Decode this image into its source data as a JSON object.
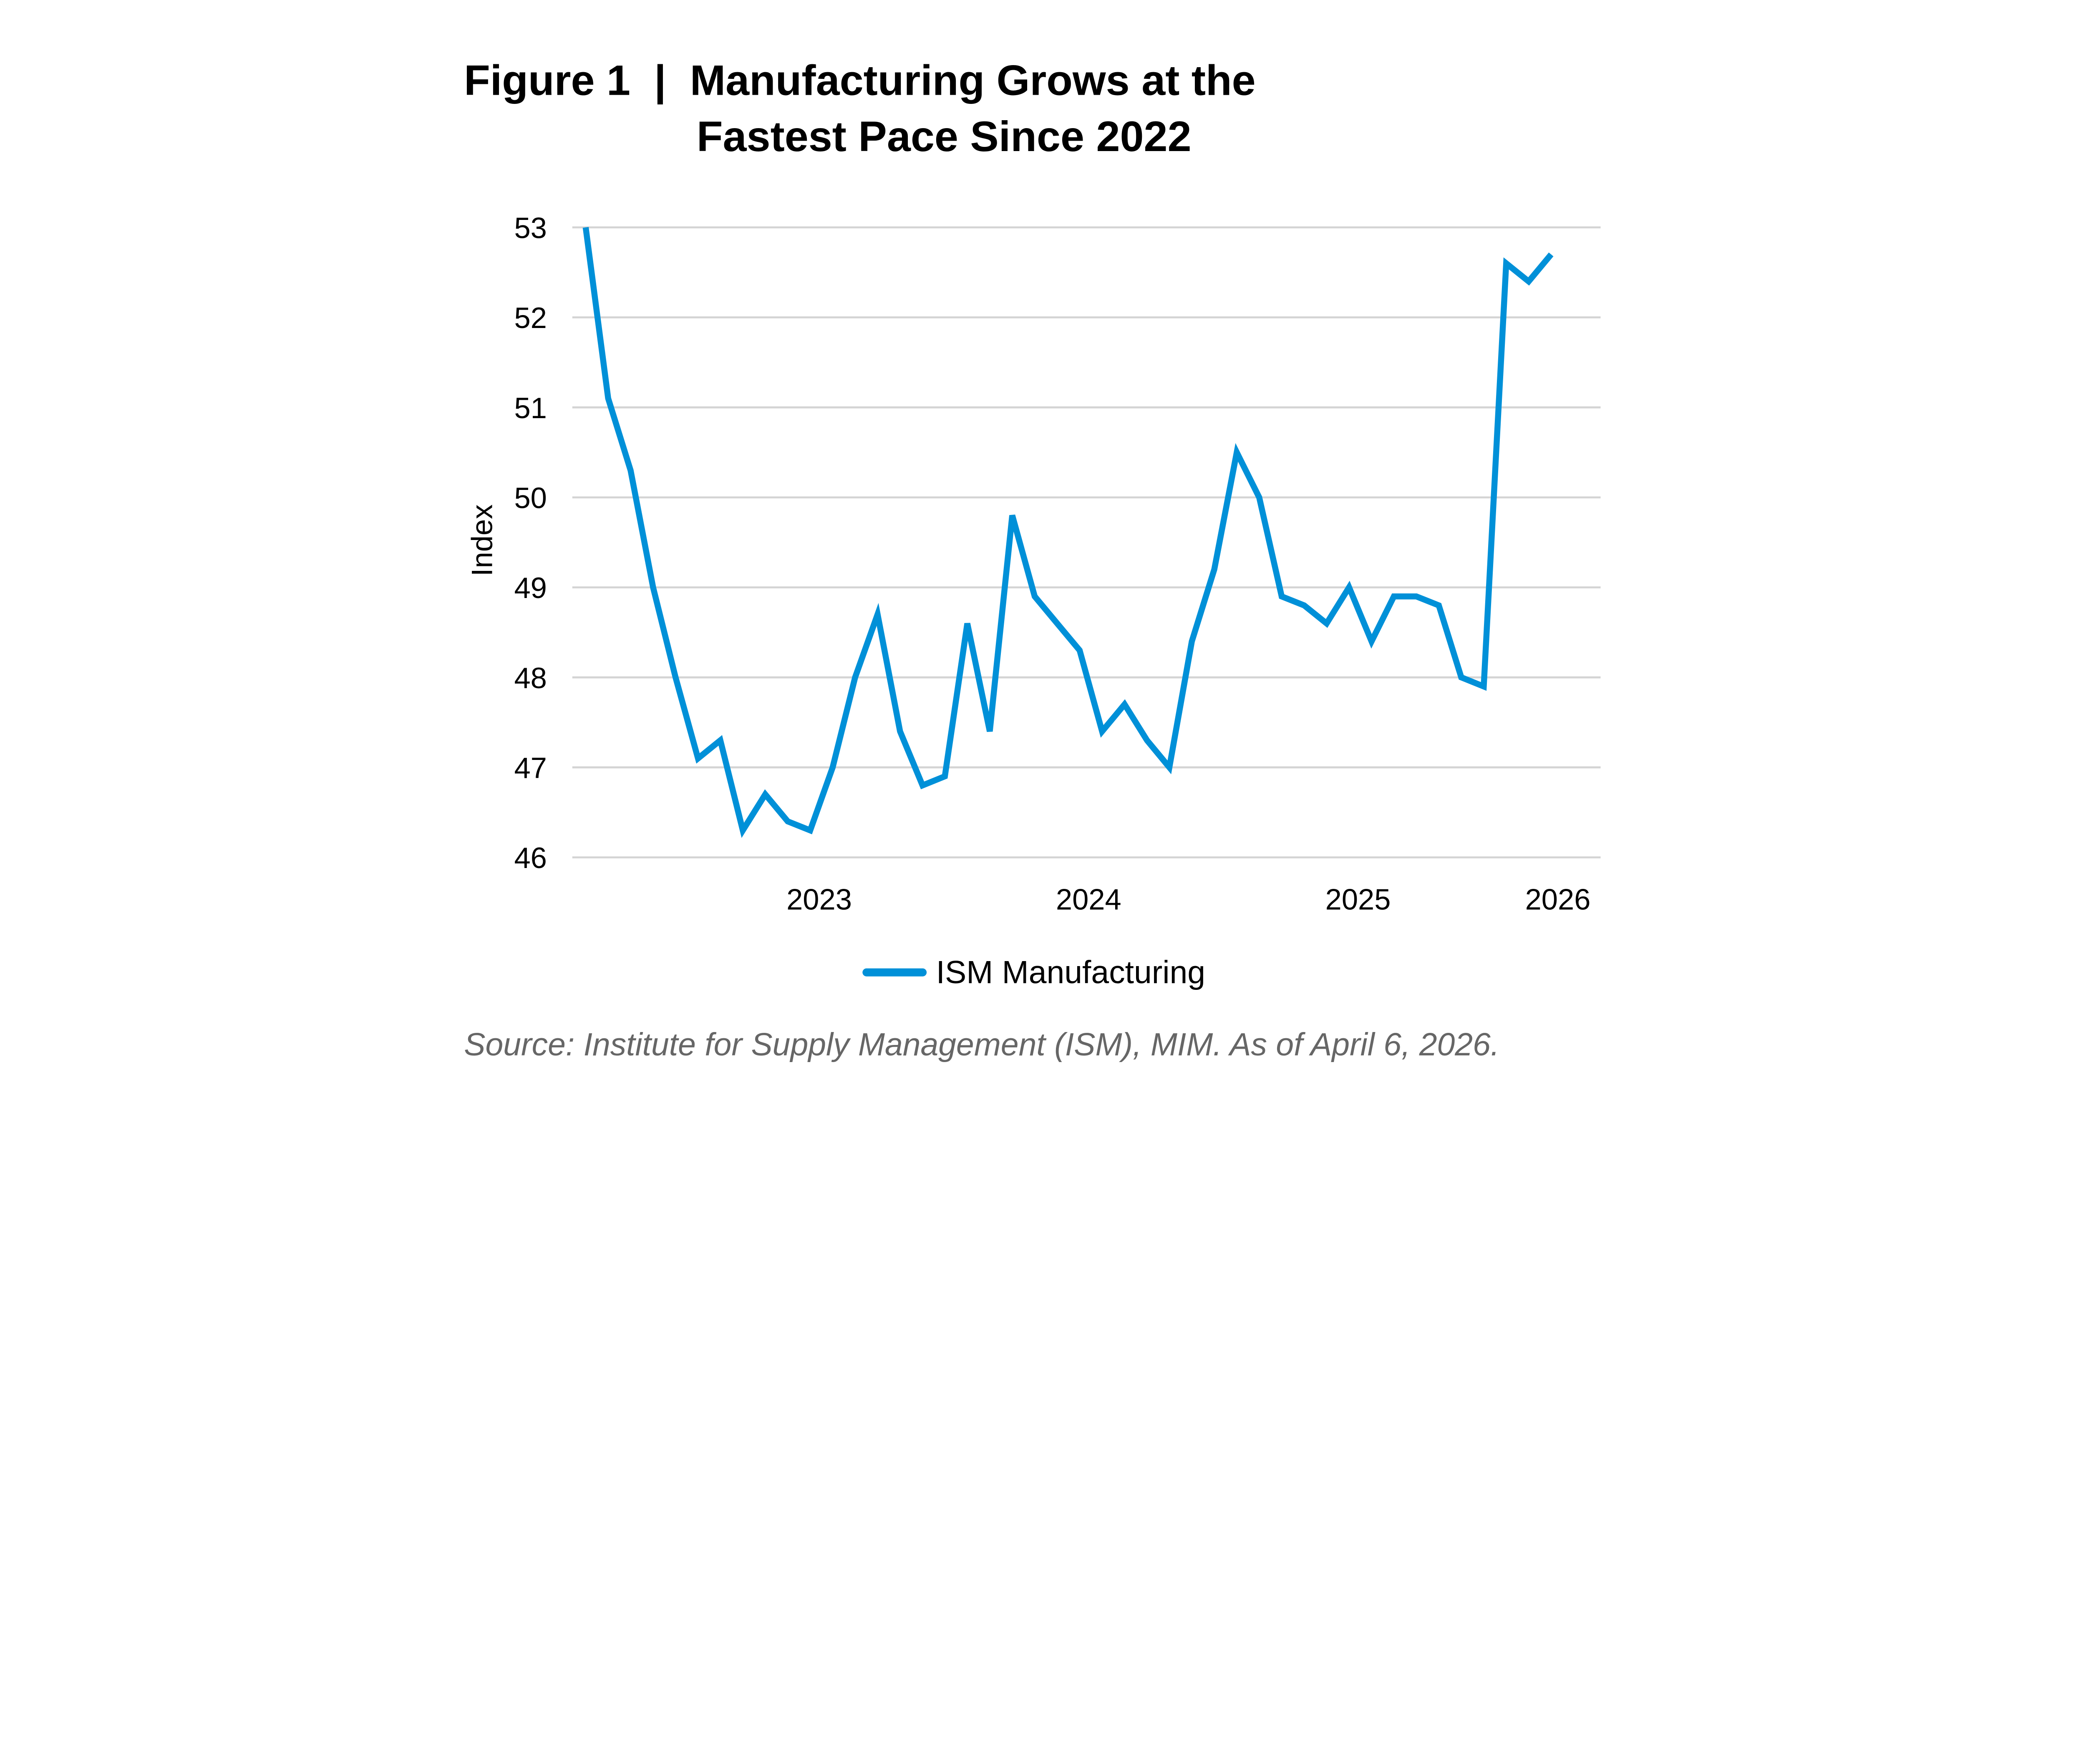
{
  "title_line1": "Figure 1  |  Manufacturing Grows at the",
  "title_line2": "Fastest Pace Since 2022",
  "source": "Source: Institute for Supply Management (ISM), MIM. As of April 6, 2026.",
  "colors": {
    "line": "#0090d8",
    "grid": "#d4d4d4"
  },
  "chart_data": {
    "type": "line",
    "title": "Figure 1 | Manufacturing Grows at the Fastest Pace Since 2022",
    "xlabel": "",
    "ylabel": "Index",
    "ylim": [
      46,
      53
    ],
    "yticks": [
      46,
      47,
      48,
      49,
      50,
      51,
      52,
      53
    ],
    "grid": true,
    "legend_position": "bottom-center",
    "x_unit": "month index (monthly observations, last = March 2026)",
    "xticks": [
      {
        "label": "2023",
        "x": 10.4
      },
      {
        "label": "2024",
        "x": 22.4
      },
      {
        "label": "2025",
        "x": 34.4
      },
      {
        "label": "2026",
        "x": 43.3
      }
    ],
    "x": [
      0,
      1,
      2,
      3,
      4,
      5,
      6,
      7,
      8,
      9,
      10,
      11,
      12,
      13,
      14,
      15,
      16,
      17,
      18,
      19,
      20,
      21,
      22,
      23,
      24,
      25,
      26,
      27,
      28,
      29,
      30,
      31,
      32,
      33,
      34,
      35,
      36,
      37,
      38,
      39,
      40,
      41,
      42,
      43
    ],
    "series": [
      {
        "name": "ISM Manufacturing",
        "values": [
          53.0,
          51.1,
          50.3,
          49.0,
          48.0,
          47.1,
          47.3,
          46.3,
          46.7,
          46.4,
          46.3,
          47.0,
          48.0,
          48.7,
          47.4,
          46.8,
          46.9,
          48.6,
          47.4,
          49.8,
          48.9,
          48.6,
          48.3,
          47.4,
          47.7,
          47.3,
          47.0,
          48.4,
          49.2,
          50.5,
          50.0,
          48.9,
          48.8,
          48.6,
          49.0,
          48.4,
          48.9,
          48.9,
          48.8,
          48.0,
          47.9,
          52.6,
          52.4,
          52.7
        ]
      }
    ]
  }
}
